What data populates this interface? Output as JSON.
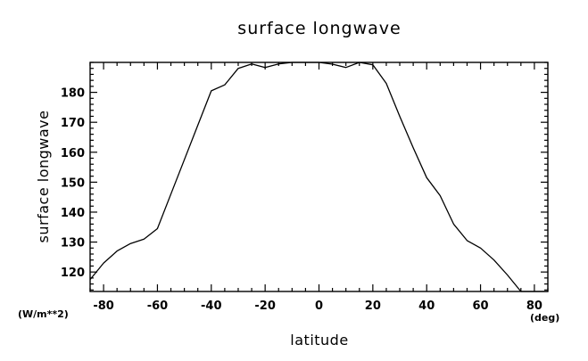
{
  "chart_data": {
    "type": "line",
    "title": "surface longwave",
    "xlabel": "latitude",
    "ylabel": "surface longwave",
    "x_unit": "(deg)",
    "y_unit": "(W/m**2)",
    "xlim": [
      -85,
      85
    ],
    "ylim": [
      113.5,
      190
    ],
    "x_ticks": [
      -80,
      -60,
      -40,
      -20,
      0,
      20,
      40,
      60,
      80
    ],
    "y_ticks": [
      120,
      130,
      140,
      150,
      160,
      170,
      180
    ],
    "x_minor_step": 5,
    "y_minor_step": 2,
    "grid": false,
    "series": [
      {
        "x": [
          -85,
          -80,
          -75,
          -70,
          -65,
          -60,
          -55,
          -50,
          -45,
          -40,
          -35,
          -30,
          -25,
          -20,
          -15,
          -10,
          -5,
          0,
          5,
          10,
          15,
          20,
          25,
          30,
          35,
          40,
          45,
          50,
          55,
          60,
          65,
          70,
          75,
          80,
          85
        ],
        "y": [
          117.5,
          123,
          127,
          129.5,
          131,
          134.5,
          146,
          157.5,
          169,
          180.5,
          182.5,
          188,
          189.5,
          188.3,
          189.5,
          190,
          190,
          190,
          189.4,
          188.3,
          190,
          189.2,
          183,
          172,
          161.5,
          151.5,
          145.5,
          136,
          130.5,
          128,
          124,
          119,
          113.5,
          113.5,
          113.5
        ]
      }
    ]
  }
}
